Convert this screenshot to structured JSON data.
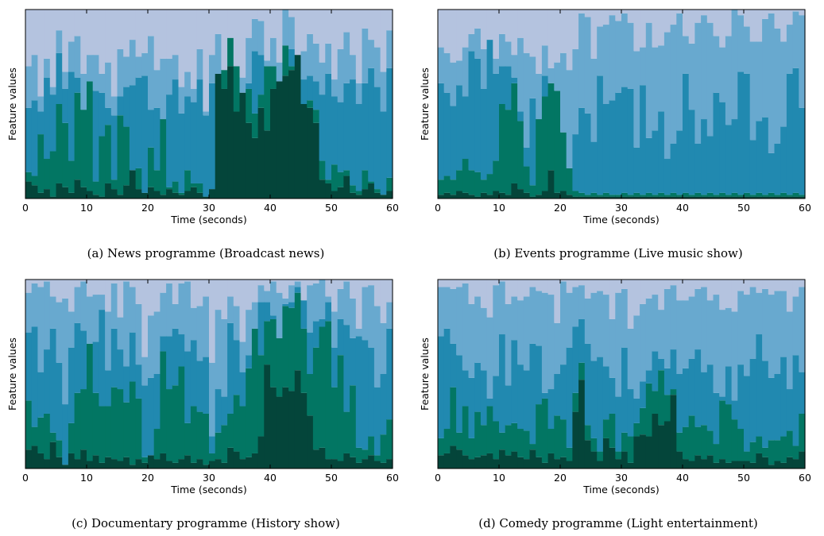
{
  "panels": [
    {
      "caption": "(a)  News programme (Broadcast news)",
      "chart_data": {
        "type": "area",
        "xlabel": "Time (seconds)",
        "ylabel": "Feature values",
        "xlim": [
          0,
          60
        ],
        "ylim": [
          0,
          1
        ],
        "xticks": [
          "0",
          "10",
          "20",
          "30",
          "40",
          "50",
          "60"
        ],
        "grid": false,
        "stack_boundaries": [
          [
            0.09,
            0.07,
            0.03,
            0.05,
            0.01,
            0.08,
            0.06,
            0.03,
            0.1,
            0.06,
            0.04,
            0.02,
            0.01,
            0.08,
            0.05,
            0.02,
            0.07,
            0.15,
            0.05,
            0.03,
            0.06,
            0.04,
            0.02,
            0.05,
            0.03,
            0.02,
            0.04,
            0.06,
            0.03,
            0.01,
            0.05,
            0.66,
            0.58,
            0.7,
            0.46,
            0.56,
            0.4,
            0.32,
            0.48,
            0.36,
            0.58,
            0.62,
            0.65,
            0.68,
            0.76,
            0.5,
            0.48,
            0.4,
            0.1,
            0.08,
            0.04,
            0.06,
            0.12,
            0.03,
            0.02,
            0.05,
            0.08,
            0.03,
            0.02,
            0.04
          ],
          [
            0.14,
            0.12,
            0.34,
            0.21,
            0.25,
            0.5,
            0.4,
            0.2,
            0.56,
            0.47,
            0.62,
            0.09,
            0.33,
            0.39,
            0.1,
            0.44,
            0.38,
            0.15,
            0.16,
            0.03,
            0.27,
            0.15,
            0.42,
            0.06,
            0.09,
            0.03,
            0.15,
            0.08,
            0.08,
            0.01,
            0.05,
            0.66,
            0.68,
            0.85,
            0.7,
            0.52,
            0.58,
            0.45,
            0.55,
            0.7,
            0.7,
            0.62,
            0.81,
            0.7,
            0.75,
            0.5,
            0.52,
            0.47,
            0.2,
            0.1,
            0.18,
            0.14,
            0.15,
            0.07,
            0.04,
            0.15,
            0.09,
            0.05,
            0.02,
            0.11
          ],
          [
            0.48,
            0.52,
            0.46,
            0.64,
            0.55,
            0.77,
            0.58,
            0.67,
            0.64,
            0.47,
            0.61,
            0.57,
            0.56,
            0.48,
            0.44,
            0.54,
            0.59,
            0.6,
            0.64,
            0.65,
            0.47,
            0.48,
            0.36,
            0.55,
            0.63,
            0.45,
            0.54,
            0.51,
            0.63,
            0.44,
            0.61,
            0.65,
            0.43,
            0.5,
            0.49,
            0.54,
            0.61,
            0.78,
            0.76,
            0.62,
            0.58,
            0.56,
            0.79,
            0.79,
            0.57,
            0.63,
            0.65,
            0.62,
            0.55,
            0.66,
            0.54,
            0.51,
            0.61,
            0.63,
            0.5,
            0.61,
            0.69,
            0.59,
            0.46,
            0.69
          ],
          [
            0.7,
            0.76,
            0.54,
            0.74,
            0.59,
            0.89,
            0.67,
            0.83,
            0.86,
            0.66,
            0.76,
            0.76,
            0.66,
            0.72,
            0.54,
            0.79,
            0.75,
            0.84,
            0.75,
            0.77,
            0.86,
            0.68,
            0.74,
            0.74,
            0.76,
            0.59,
            0.67,
            0.58,
            0.79,
            0.46,
            0.76,
            0.87,
            0.61,
            0.64,
            0.57,
            0.64,
            0.85,
            0.95,
            0.94,
            0.73,
            0.85,
            0.72,
            1.0,
            0.96,
            0.74,
            0.78,
            0.87,
            0.82,
            0.72,
            0.82,
            0.63,
            0.79,
            0.88,
            0.76,
            0.61,
            0.9,
            0.84,
            0.8,
            0.67,
            0.89
          ]
        ]
      }
    },
    {
      "caption": "(b)  Events programme (Live music show)",
      "chart_data": {
        "type": "area",
        "xlabel": "Time (seconds)",
        "ylabel": "Feature values",
        "xlim": [
          0,
          60
        ],
        "ylim": [
          0,
          1
        ],
        "xticks": [
          "0",
          "10",
          "20",
          "30",
          "40",
          "50",
          "60"
        ],
        "grid": false,
        "stack_boundaries": [
          [
            0.02,
            0.03,
            0.02,
            0.04,
            0.03,
            0.02,
            0.01,
            0.03,
            0.02,
            0.04,
            0.03,
            0.02,
            0.08,
            0.05,
            0.03,
            0.01,
            0.02,
            0.04,
            0.15,
            0.03,
            0.04,
            0.02,
            0.01,
            0.01,
            0.01,
            0.01,
            0.01,
            0.01,
            0.01,
            0.01,
            0.01,
            0.01,
            0.01,
            0.01,
            0.01,
            0.01,
            0.01,
            0.01,
            0.01,
            0.01,
            0.01,
            0.01,
            0.01,
            0.01,
            0.01,
            0.01,
            0.01,
            0.01,
            0.01,
            0.01,
            0.01,
            0.01,
            0.01,
            0.01,
            0.01,
            0.01,
            0.01,
            0.01,
            0.01,
            0.01
          ],
          [
            0.1,
            0.12,
            0.1,
            0.15,
            0.21,
            0.15,
            0.14,
            0.1,
            0.13,
            0.2,
            0.5,
            0.47,
            0.61,
            0.41,
            0.17,
            0.07,
            0.42,
            0.54,
            0.61,
            0.57,
            0.35,
            0.16,
            0.04,
            0.03,
            0.02,
            0.03,
            0.02,
            0.03,
            0.02,
            0.02,
            0.03,
            0.02,
            0.03,
            0.02,
            0.03,
            0.02,
            0.03,
            0.02,
            0.03,
            0.02,
            0.03,
            0.02,
            0.03,
            0.02,
            0.03,
            0.02,
            0.03,
            0.02,
            0.03,
            0.02,
            0.03,
            0.02,
            0.03,
            0.02,
            0.03,
            0.02,
            0.03,
            0.02,
            0.03,
            0.02
          ],
          [
            0.61,
            0.56,
            0.49,
            0.6,
            0.54,
            0.78,
            0.74,
            0.58,
            0.84,
            0.66,
            0.7,
            0.7,
            0.64,
            0.46,
            0.27,
            0.53,
            0.21,
            0.65,
            0.61,
            0.57,
            0.35,
            0.16,
            0.34,
            0.48,
            0.45,
            0.3,
            0.65,
            0.5,
            0.52,
            0.56,
            0.59,
            0.58,
            0.27,
            0.6,
            0.32,
            0.36,
            0.46,
            0.21,
            0.29,
            0.36,
            0.66,
            0.47,
            0.29,
            0.42,
            0.33,
            0.56,
            0.51,
            0.39,
            0.42,
            0.67,
            0.66,
            0.31,
            0.41,
            0.43,
            0.24,
            0.29,
            0.38,
            0.66,
            0.69,
            0.48
          ],
          [
            0.8,
            0.77,
            0.72,
            0.73,
            0.8,
            0.87,
            0.9,
            0.79,
            0.84,
            0.74,
            0.87,
            0.83,
            0.76,
            0.85,
            0.77,
            0.75,
            0.66,
            0.81,
            0.69,
            0.72,
            0.77,
            0.68,
            0.79,
            0.98,
            0.96,
            0.74,
            0.91,
            0.92,
            0.97,
            0.94,
            0.98,
            0.93,
            0.78,
            0.8,
            0.93,
            0.8,
            0.81,
            0.88,
            0.92,
            0.98,
            0.86,
            0.82,
            0.93,
            0.97,
            0.93,
            0.86,
            0.8,
            0.86,
            1.0,
            0.97,
            0.91,
            0.83,
            0.83,
            0.95,
            0.98,
            0.9,
            0.83,
            0.92,
            0.99,
            0.97
          ]
        ]
      }
    },
    {
      "caption": "(c)  Documentary programme (History show)",
      "chart_data": {
        "type": "area",
        "xlabel": "Time (seconds)",
        "ylabel": "Feature values",
        "xlim": [
          0,
          60
        ],
        "ylim": [
          0,
          1
        ],
        "xticks": [
          "0",
          "10",
          "20",
          "30",
          "40",
          "50",
          "60"
        ],
        "grid": false,
        "stack_boundaries": [
          [
            0.1,
            0.12,
            0.08,
            0.05,
            0.14,
            0.06,
            0.02,
            0.08,
            0.05,
            0.1,
            0.04,
            0.07,
            0.03,
            0.06,
            0.05,
            0.04,
            0.06,
            0.02,
            0.05,
            0.03,
            0.07,
            0.05,
            0.08,
            0.04,
            0.03,
            0.05,
            0.07,
            0.03,
            0.05,
            0.02,
            0.04,
            0.05,
            0.03,
            0.11,
            0.09,
            0.05,
            0.06,
            0.08,
            0.17,
            0.55,
            0.43,
            0.38,
            0.43,
            0.41,
            0.52,
            0.4,
            0.28,
            0.1,
            0.11,
            0.05,
            0.05,
            0.04,
            0.08,
            0.06,
            0.03,
            0.05,
            0.07,
            0.04,
            0.03,
            0.05
          ],
          [
            0.36,
            0.22,
            0.27,
            0.29,
            0.19,
            0.15,
            0.02,
            0.24,
            0.4,
            0.42,
            0.66,
            0.4,
            0.33,
            0.33,
            0.43,
            0.42,
            0.35,
            0.46,
            0.37,
            0.06,
            0.07,
            0.21,
            0.62,
            0.42,
            0.44,
            0.54,
            0.24,
            0.33,
            0.3,
            0.29,
            0.08,
            0.19,
            0.23,
            0.29,
            0.39,
            0.33,
            0.53,
            0.74,
            0.6,
            0.78,
            0.79,
            0.69,
            0.86,
            0.85,
            0.93,
            0.74,
            0.5,
            0.64,
            0.75,
            0.78,
            0.43,
            0.6,
            0.3,
            0.44,
            0.11,
            0.1,
            0.17,
            0.07,
            0.18,
            0.26
          ],
          [
            0.72,
            0.75,
            0.51,
            0.63,
            0.74,
            0.56,
            0.34,
            0.64,
            0.77,
            0.73,
            0.64,
            0.67,
            0.84,
            0.52,
            0.74,
            0.63,
            0.54,
            0.72,
            0.55,
            0.44,
            0.48,
            0.5,
            0.7,
            0.7,
            0.74,
            0.71,
            0.62,
            0.68,
            0.57,
            0.59,
            0.17,
            0.42,
            0.38,
            0.77,
            0.68,
            0.51,
            0.6,
            0.54,
            0.88,
            0.88,
            0.81,
            0.69,
            0.87,
            0.88,
            0.96,
            0.89,
            0.72,
            0.78,
            0.79,
            0.88,
            0.64,
            0.79,
            0.76,
            0.69,
            0.7,
            0.68,
            0.64,
            0.43,
            0.5,
            0.74
          ],
          [
            0.93,
            0.98,
            0.96,
            0.99,
            0.91,
            0.88,
            0.9,
            0.83,
            0.96,
            0.99,
            0.91,
            0.92,
            0.92,
            0.83,
            0.98,
            0.8,
            0.99,
            0.96,
            0.87,
            0.59,
            0.81,
            0.83,
            0.93,
            0.98,
            0.87,
            0.98,
            0.99,
            0.85,
            0.86,
            0.91,
            0.56,
            0.84,
            0.79,
            0.91,
            0.86,
            0.67,
            0.84,
            0.88,
            0.97,
            0.94,
            0.99,
            0.93,
            0.9,
            0.97,
            0.99,
            0.89,
            0.97,
            0.98,
            1.0,
            0.91,
            0.83,
            0.95,
            0.99,
            0.9,
            0.74,
            0.96,
            0.97,
            0.86,
            0.77,
            0.88
          ]
        ]
      }
    },
    {
      "caption": "(d)  Comedy programme (Light entertainment)",
      "chart_data": {
        "type": "area",
        "xlabel": "Time (seconds)",
        "ylabel": "Feature values",
        "xlim": [
          0,
          60
        ],
        "ylim": [
          0,
          1
        ],
        "xticks": [
          "0",
          "10",
          "20",
          "30",
          "40",
          "50",
          "60"
        ],
        "grid": false,
        "stack_boundaries": [
          [
            0.07,
            0.08,
            0.12,
            0.1,
            0.07,
            0.05,
            0.06,
            0.07,
            0.08,
            0.05,
            0.1,
            0.07,
            0.09,
            0.06,
            0.05,
            0.1,
            0.06,
            0.03,
            0.08,
            0.05,
            0.06,
            0.04,
            0.3,
            0.47,
            0.15,
            0.09,
            0.04,
            0.16,
            0.11,
            0.05,
            0.09,
            0.03,
            0.17,
            0.18,
            0.17,
            0.29,
            0.23,
            0.25,
            0.39,
            0.09,
            0.05,
            0.04,
            0.07,
            0.05,
            0.07,
            0.03,
            0.05,
            0.03,
            0.04,
            0.04,
            0.04,
            0.03,
            0.08,
            0.06,
            0.02,
            0.04,
            0.03,
            0.06,
            0.05,
            0.09
          ],
          [
            0.16,
            0.21,
            0.43,
            0.19,
            0.33,
            0.16,
            0.3,
            0.23,
            0.33,
            0.25,
            0.19,
            0.23,
            0.24,
            0.21,
            0.2,
            0.13,
            0.34,
            0.37,
            0.21,
            0.28,
            0.26,
            0.11,
            0.4,
            0.56,
            0.23,
            0.16,
            0.09,
            0.26,
            0.29,
            0.09,
            0.19,
            0.17,
            0.24,
            0.32,
            0.45,
            0.41,
            0.52,
            0.39,
            0.42,
            0.19,
            0.22,
            0.28,
            0.22,
            0.23,
            0.2,
            0.13,
            0.36,
            0.34,
            0.26,
            0.21,
            0.09,
            0.14,
            0.17,
            0.11,
            0.15,
            0.15,
            0.17,
            0.2,
            0.12,
            0.29
          ],
          [
            0.7,
            0.74,
            0.66,
            0.6,
            0.52,
            0.48,
            0.56,
            0.52,
            0.37,
            0.49,
            0.71,
            0.44,
            0.68,
            0.55,
            0.52,
            0.66,
            0.65,
            0.4,
            0.42,
            0.5,
            0.55,
            0.64,
            0.75,
            0.79,
            0.66,
            0.57,
            0.59,
            0.54,
            0.48,
            0.38,
            0.64,
            0.42,
            0.37,
            0.46,
            0.52,
            0.62,
            0.58,
            0.53,
            0.63,
            0.5,
            0.53,
            0.58,
            0.63,
            0.51,
            0.55,
            0.4,
            0.38,
            0.54,
            0.36,
            0.55,
            0.49,
            0.58,
            0.71,
            0.57,
            0.48,
            0.5,
            0.59,
            0.42,
            0.6,
            0.51
          ],
          [
            0.96,
            0.96,
            0.95,
            0.96,
            0.98,
            0.87,
            0.91,
            0.85,
            0.8,
            0.97,
            0.99,
            0.87,
            0.91,
            0.89,
            0.91,
            0.96,
            0.94,
            0.93,
            0.92,
            0.77,
            0.99,
            0.93,
            0.96,
            0.97,
            0.9,
            0.93,
            0.94,
            0.92,
            0.79,
            0.93,
            0.95,
            0.74,
            0.81,
            0.87,
            0.9,
            0.92,
            0.84,
            0.95,
            0.97,
            0.89,
            0.89,
            0.91,
            0.95,
            0.96,
            0.89,
            0.92,
            0.84,
            0.85,
            0.83,
            0.94,
            0.92,
            0.96,
            0.93,
            0.95,
            0.92,
            0.94,
            0.94,
            0.83,
            0.91,
            0.96
          ]
        ]
      }
    }
  ],
  "colors": {
    "background": "#fdf4fa",
    "layers": [
      "#04453a",
      "#027663",
      "#2189b0",
      "#68a9cf",
      "#b4c3df",
      "#e0dcee"
    ]
  }
}
